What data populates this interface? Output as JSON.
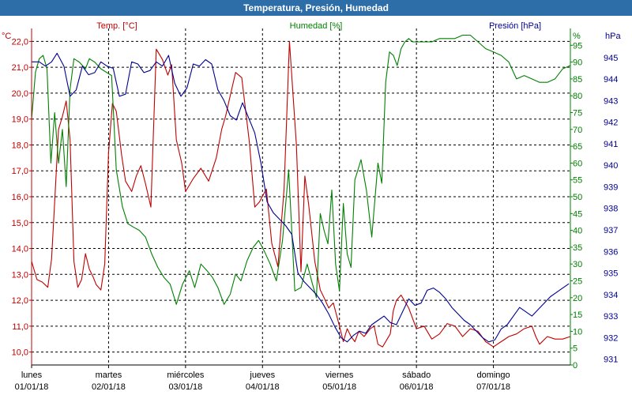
{
  "window_title": "Temperatura, Presión, Humedad",
  "colors": {
    "temperature": "#c00000",
    "humidity": "#008000",
    "pressure": "#000090",
    "titlebar": "#2e6ea8",
    "grid": "#000000"
  },
  "chart_data": {
    "type": "line",
    "title": "Temperatura, Presión, Humedad",
    "axes": {
      "temperature": {
        "label": "Temp. [°C]",
        "unit": "°C",
        "min": 9.5,
        "max": 22.5,
        "ticks": [
          "10,0",
          "11,0",
          "12,0",
          "13,0",
          "14,0",
          "15,0",
          "16,0",
          "17,0",
          "18,0",
          "19,0",
          "20,0",
          "21,0",
          "22,0"
        ]
      },
      "humidity": {
        "label": "Humedad [%]",
        "unit": "%",
        "min": 0,
        "max": 100,
        "ticks": [
          "0",
          "5",
          "10",
          "15",
          "20",
          "25",
          "30",
          "35",
          "40",
          "45",
          "50",
          "55",
          "60",
          "65",
          "70",
          "75",
          "80",
          "85",
          "90",
          "95"
        ]
      },
      "pressure": {
        "label": "Presión [hPa]",
        "unit": "hPa",
        "min": 930.73,
        "max": 946.35,
        "ticks": [
          "931",
          "932",
          "933",
          "934",
          "935",
          "936",
          "937",
          "938",
          "939",
          "940",
          "941",
          "942",
          "943",
          "944",
          "945"
        ]
      }
    },
    "x": {
      "range_days": [
        0,
        7
      ],
      "day_labels": [
        {
          "day": "lunes",
          "date": "01/01/18"
        },
        {
          "day": "martes",
          "date": "02/01/18"
        },
        {
          "day": "miércoles",
          "date": "03/01/18"
        },
        {
          "day": "jueves",
          "date": "04/01/18"
        },
        {
          "day": "viernes",
          "date": "05/01/18"
        },
        {
          "day": "sábado",
          "date": "06/01/18"
        },
        {
          "day": "domingo",
          "date": "07/01/18"
        }
      ]
    },
    "series": [
      {
        "name": "Temperatura",
        "axis": "temperature",
        "color": "#c00000",
        "x": [
          0,
          0.07,
          0.14,
          0.21,
          0.26,
          0.3,
          0.35,
          0.4,
          0.45,
          0.5,
          0.55,
          0.6,
          0.65,
          0.7,
          0.75,
          0.8,
          0.84,
          0.9,
          0.95,
          1.0,
          1.05,
          1.1,
          1.17,
          1.22,
          1.3,
          1.36,
          1.42,
          1.48,
          1.55,
          1.62,
          1.7,
          1.77,
          1.82,
          1.88,
          1.95,
          2.0,
          2.1,
          2.2,
          2.3,
          2.4,
          2.47,
          2.52,
          2.58,
          2.65,
          2.73,
          2.83,
          2.9,
          2.96,
          3.05,
          3.12,
          3.2,
          3.28,
          3.35,
          3.44,
          3.5,
          3.55,
          3.6,
          3.68,
          3.75,
          3.8,
          3.86,
          3.92,
          4.0,
          4.05,
          4.1,
          4.15,
          4.2,
          4.25,
          4.32,
          4.4,
          4.45,
          4.5,
          4.56,
          4.62,
          4.66,
          4.7,
          4.74,
          4.8,
          4.9,
          5.0,
          5.1,
          5.2,
          5.3,
          5.4,
          5.5,
          5.6,
          5.7,
          5.8,
          5.9,
          6.0,
          6.1,
          6.2,
          6.3,
          6.4,
          6.5,
          6.55,
          6.6,
          6.7,
          6.8,
          6.9,
          7.0
        ],
        "values": [
          13.5,
          12.8,
          12.7,
          12.5,
          13.6,
          15.8,
          18.6,
          19.1,
          19.7,
          18.2,
          13.5,
          12.5,
          12.8,
          13.8,
          13.2,
          12.9,
          12.6,
          12.4,
          13.4,
          17.7,
          19.6,
          19.3,
          17.6,
          16.6,
          16.2,
          16.8,
          17.2,
          16.5,
          15.6,
          21.7,
          21.3,
          20.7,
          21.1,
          18.2,
          17.3,
          16.2,
          16.7,
          17.1,
          16.6,
          17.5,
          18.6,
          19.1,
          19.9,
          20.8,
          20.6,
          18.1,
          15.6,
          15.8,
          16.3,
          14.2,
          13.3,
          16.3,
          22.0,
          18.0,
          13.1,
          16.8,
          15.7,
          13.5,
          12.4,
          12.1,
          11.7,
          11.9,
          11.0,
          10.4,
          10.9,
          10.6,
          10.4,
          10.8,
          10.6,
          10.9,
          11.0,
          10.3,
          10.2,
          10.5,
          10.7,
          11.6,
          12.0,
          12.2,
          11.7,
          10.9,
          11.0,
          10.5,
          10.7,
          11.1,
          11.0,
          10.6,
          10.9,
          10.8,
          10.4,
          10.2,
          10.4,
          10.6,
          10.7,
          10.9,
          11.0,
          10.6,
          10.3,
          10.6,
          10.5,
          10.5,
          10.6
        ]
      },
      {
        "name": "Humedad",
        "axis": "humidity",
        "color": "#008000",
        "x": [
          0,
          0.05,
          0.1,
          0.15,
          0.2,
          0.25,
          0.3,
          0.35,
          0.4,
          0.45,
          0.5,
          0.55,
          0.62,
          0.7,
          0.75,
          0.82,
          0.9,
          0.97,
          1.04,
          1.1,
          1.18,
          1.25,
          1.32,
          1.4,
          1.48,
          1.56,
          1.64,
          1.72,
          1.8,
          1.88,
          1.96,
          2.05,
          2.12,
          2.2,
          2.28,
          2.35,
          2.42,
          2.5,
          2.58,
          2.65,
          2.72,
          2.8,
          2.88,
          2.95,
          3.02,
          3.1,
          3.18,
          3.26,
          3.34,
          3.42,
          3.5,
          3.58,
          3.65,
          3.7,
          3.75,
          3.8,
          3.85,
          3.9,
          3.95,
          4.0,
          4.05,
          4.1,
          4.15,
          4.2,
          4.28,
          4.35,
          4.42,
          4.5,
          4.55,
          4.6,
          4.65,
          4.7,
          4.75,
          4.8,
          4.85,
          4.9,
          4.95,
          5.0,
          5.05,
          5.1,
          5.2,
          5.3,
          5.4,
          5.5,
          5.6,
          5.7,
          5.8,
          5.9,
          6.0,
          6.1,
          6.2,
          6.3,
          6.4,
          6.5,
          6.6,
          6.7,
          6.8,
          6.9,
          7.0
        ],
        "values": [
          73,
          87,
          91,
          92,
          88,
          60,
          75,
          60,
          70,
          53,
          82,
          91,
          90,
          88,
          91,
          90,
          88,
          87,
          86,
          58,
          47,
          42,
          41,
          40,
          38,
          33,
          29,
          26,
          24,
          18,
          24,
          28,
          23,
          30,
          28,
          26,
          23,
          18,
          21,
          27,
          25,
          31,
          35,
          37,
          34,
          30,
          25,
          37,
          58,
          22,
          23,
          30,
          24,
          20,
          45,
          40,
          36,
          52,
          30,
          22,
          48,
          33,
          29,
          55,
          61,
          52,
          38,
          60,
          54,
          84,
          93,
          92,
          89,
          94,
          96,
          97,
          96,
          96,
          96,
          96,
          96,
          97,
          97,
          97,
          98,
          98,
          96,
          94,
          93,
          92,
          90,
          85,
          86,
          85,
          84,
          84,
          85,
          88,
          89
        ]
      },
      {
        "name": "Presión",
        "axis": "pressure",
        "color": "#000090",
        "x": [
          0,
          0.1,
          0.18,
          0.26,
          0.33,
          0.42,
          0.5,
          0.58,
          0.66,
          0.74,
          0.82,
          0.9,
          0.98,
          1.06,
          1.14,
          1.22,
          1.3,
          1.38,
          1.46,
          1.54,
          1.62,
          1.7,
          1.78,
          1.86,
          1.94,
          2.02,
          2.1,
          2.18,
          2.26,
          2.34,
          2.42,
          2.5,
          2.58,
          2.66,
          2.74,
          2.82,
          2.9,
          2.98,
          3.06,
          3.14,
          3.22,
          3.3,
          3.38,
          3.46,
          3.54,
          3.62,
          3.7,
          3.78,
          3.86,
          3.94,
          4.02,
          4.1,
          4.18,
          4.26,
          4.34,
          4.42,
          4.5,
          4.58,
          4.66,
          4.74,
          4.82,
          4.9,
          4.98,
          5.06,
          5.14,
          5.22,
          5.3,
          5.38,
          5.46,
          5.54,
          5.62,
          5.7,
          5.78,
          5.86,
          5.94,
          6.02,
          6.1,
          6.18,
          6.26,
          6.34,
          6.42,
          6.5,
          6.58,
          6.66,
          6.74,
          6.82,
          6.9,
          6.98
        ],
        "values": [
          944.8,
          944.8,
          944.6,
          944.8,
          945.2,
          944.6,
          943.2,
          943.5,
          944.6,
          944.2,
          944.3,
          944.8,
          944.6,
          944.5,
          943.2,
          943.3,
          944.8,
          944.7,
          944.3,
          944.4,
          944.8,
          944.6,
          945.1,
          943.8,
          943.2,
          943.6,
          944.7,
          944.6,
          944.9,
          944.7,
          943.5,
          943.0,
          942.3,
          942.1,
          942.9,
          942.2,
          941.5,
          940.1,
          938.3,
          937.8,
          937.5,
          937.2,
          936.8,
          935.0,
          934.6,
          934.3,
          934.0,
          933.6,
          933.1,
          932.5,
          932.0,
          931.8,
          932.1,
          932.3,
          932.2,
          932.6,
          932.8,
          933.0,
          932.7,
          932.6,
          933.2,
          933.8,
          933.5,
          933.6,
          934.2,
          934.3,
          934.1,
          933.8,
          933.4,
          933.1,
          932.8,
          932.6,
          932.3,
          932.0,
          931.8,
          931.9,
          932.4,
          932.6,
          933.0,
          933.4,
          933.2,
          933.0,
          933.3,
          933.6,
          933.9,
          934.1,
          934.3,
          934.5
        ]
      }
    ],
    "grid": true
  }
}
